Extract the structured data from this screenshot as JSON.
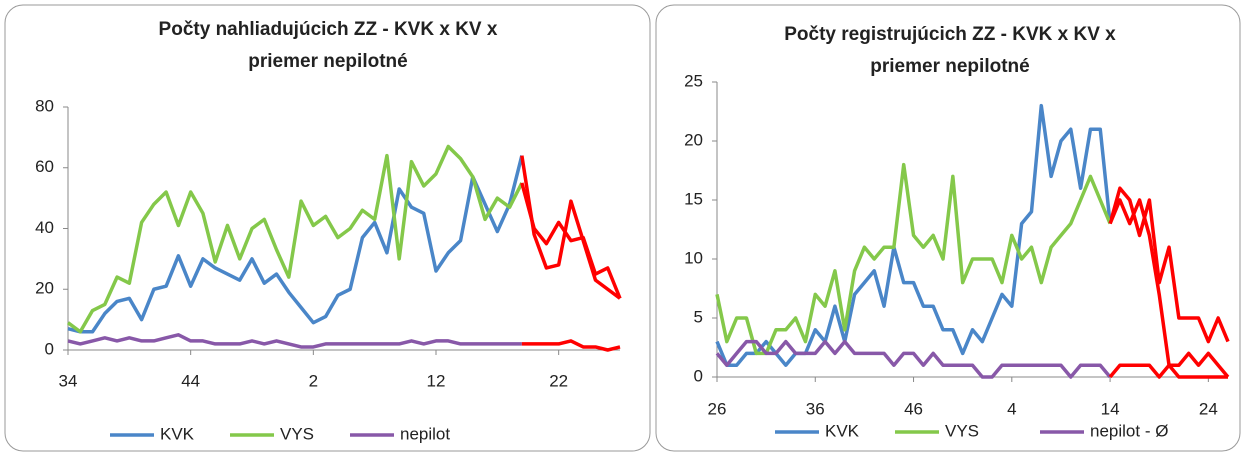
{
  "chart_data": [
    {
      "type": "line",
      "title": [
        "Počty nahliadujúcich ZZ - KVK x KV x",
        "priemer nepilotné"
      ],
      "categories": [
        "34",
        null,
        null,
        null,
        null,
        null,
        null,
        null,
        null,
        null,
        "44",
        null,
        null,
        null,
        null,
        null,
        null,
        null,
        null,
        null,
        "2",
        null,
        null,
        null,
        null,
        null,
        null,
        null,
        null,
        null,
        "12",
        null,
        null,
        null,
        null,
        null,
        null,
        null,
        null,
        null,
        "22",
        null,
        null,
        null,
        null,
        null
      ],
      "ylim": [
        0,
        80
      ],
      "yticks": [
        0,
        20,
        40,
        60,
        80
      ],
      "highlight": {
        "from": 37,
        "color": "#ff0000"
      },
      "series": [
        {
          "name": "KVK",
          "color": "#4a86c8",
          "values": [
            7,
            6,
            6,
            12,
            16,
            17,
            10,
            20,
            21,
            31,
            21,
            30,
            27,
            25,
            23,
            30,
            22,
            25,
            19,
            14,
            9,
            11,
            18,
            20,
            37,
            42,
            32,
            53,
            47,
            45,
            26,
            32,
            36,
            57,
            48,
            39,
            48,
            64,
            38,
            27,
            28,
            49,
            36,
            23,
            20,
            17
          ]
        },
        {
          "name": "VYS",
          "color": "#84c84a",
          "values": [
            9,
            6,
            13,
            15,
            24,
            22,
            42,
            48,
            52,
            41,
            52,
            45,
            29,
            41,
            30,
            40,
            43,
            33,
            24,
            49,
            41,
            44,
            37,
            40,
            46,
            43,
            64,
            30,
            62,
            54,
            58,
            67,
            63,
            57,
            43,
            50,
            47,
            55,
            40,
            35,
            42,
            36,
            37,
            25,
            27,
            17
          ]
        },
        {
          "name": "nepilot",
          "color": "#8858a8",
          "values": [
            3,
            2,
            3,
            4,
            3,
            4,
            3,
            3,
            4,
            5,
            3,
            3,
            2,
            2,
            2,
            3,
            2,
            3,
            2,
            1,
            1,
            2,
            2,
            2,
            2,
            2,
            2,
            2,
            3,
            2,
            3,
            3,
            2,
            2,
            2,
            2,
            2,
            2,
            2,
            2,
            2,
            3,
            1,
            1,
            0,
            1
          ]
        }
      ]
    },
    {
      "type": "line",
      "title": [
        "Počty registrujúcich ZZ - KVK x KV x",
        "priemer nepilotné"
      ],
      "categories": [
        "26",
        null,
        null,
        null,
        null,
        null,
        null,
        null,
        null,
        null,
        "36",
        null,
        null,
        null,
        null,
        null,
        null,
        null,
        null,
        null,
        "46",
        null,
        null,
        null,
        null,
        null,
        null,
        null,
        null,
        null,
        "4",
        null,
        null,
        null,
        null,
        null,
        null,
        null,
        null,
        null,
        "14",
        null,
        null,
        null,
        null,
        null,
        null,
        null,
        null,
        null,
        "24",
        null,
        null
      ],
      "ylim": [
        0,
        25
      ],
      "yticks": [
        0,
        5,
        10,
        15,
        20,
        25
      ],
      "highlight": {
        "from": 40,
        "color": "#ff0000"
      },
      "series": [
        {
          "name": "KVK",
          "color": "#4a86c8",
          "values": [
            3,
            1,
            1,
            2,
            2,
            3,
            2,
            1,
            2,
            2,
            4,
            3,
            6,
            3,
            7,
            8,
            9,
            6,
            11,
            8,
            8,
            6,
            6,
            4,
            4,
            2,
            4,
            3,
            5,
            7,
            6,
            13,
            14,
            23,
            17,
            20,
            21,
            16,
            21,
            21,
            13,
            16,
            15,
            12,
            15,
            8,
            11,
            5,
            5,
            5,
            3,
            5,
            3
          ]
        },
        {
          "name": "VYS",
          "color": "#84c84a",
          "values": [
            7,
            3,
            5,
            5,
            2,
            2,
            4,
            4,
            5,
            3,
            7,
            6,
            9,
            4,
            9,
            11,
            10,
            11,
            11,
            18,
            12,
            11,
            12,
            10,
            17,
            8,
            10,
            10,
            10,
            8,
            12,
            10,
            11,
            8,
            11,
            12,
            13,
            15,
            17,
            15,
            13,
            15,
            13,
            15,
            12,
            7,
            1,
            1,
            2,
            1,
            2,
            1,
            0
          ]
        },
        {
          "name": "nepilot - Ø",
          "color": "#8858a8",
          "values": [
            2,
            1,
            2,
            3,
            3,
            2,
            2,
            3,
            2,
            2,
            2,
            3,
            2,
            3,
            2,
            2,
            2,
            2,
            1,
            2,
            2,
            1,
            2,
            1,
            1,
            1,
            1,
            0,
            0,
            1,
            1,
            1,
            1,
            1,
            1,
            1,
            0,
            1,
            1,
            1,
            0,
            1,
            1,
            1,
            1,
            0,
            1,
            0,
            0,
            0,
            0,
            0,
            0
          ]
        }
      ]
    }
  ]
}
